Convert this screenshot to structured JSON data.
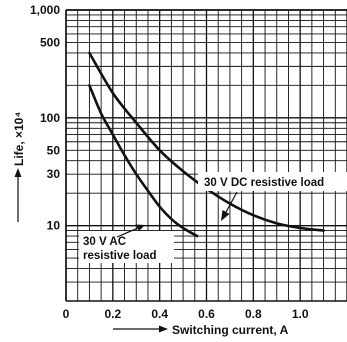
{
  "chart_data": {
    "type": "line",
    "xlabel": "Switching current, A",
    "ylabel": "Life, ×10⁴",
    "xscale": "linear",
    "yscale": "log",
    "xlim": [
      0,
      1.2
    ],
    "ylim": [
      2,
      1000
    ],
    "x_ticks": [
      {
        "value": 0,
        "label": "0"
      },
      {
        "value": 0.2,
        "label": "0.2"
      },
      {
        "value": 0.4,
        "label": "0.4"
      },
      {
        "value": 0.6,
        "label": "0.6"
      },
      {
        "value": 0.8,
        "label": "0.8"
      },
      {
        "value": 1.0,
        "label": "1.0"
      }
    ],
    "y_ticks": [
      {
        "value": 10,
        "label": "10"
      },
      {
        "value": 30,
        "label": "30"
      },
      {
        "value": 50,
        "label": "50"
      },
      {
        "value": 100,
        "label": "100"
      },
      {
        "value": 500,
        "label": "500"
      },
      {
        "value": 1000,
        "label": "1,000"
      }
    ],
    "grid": true,
    "series": [
      {
        "name": "30 V DC resistive load",
        "color": "#111111",
        "points": [
          {
            "x": 0.1,
            "y": 400
          },
          {
            "x": 0.2,
            "y": 170
          },
          {
            "x": 0.3,
            "y": 90
          },
          {
            "x": 0.4,
            "y": 50
          },
          {
            "x": 0.5,
            "y": 32
          },
          {
            "x": 0.6,
            "y": 22
          },
          {
            "x": 0.7,
            "y": 16
          },
          {
            "x": 0.8,
            "y": 12.5
          },
          {
            "x": 0.9,
            "y": 10.5
          },
          {
            "x": 1.0,
            "y": 9.5
          },
          {
            "x": 1.1,
            "y": 9
          }
        ]
      },
      {
        "name": "30 V AC resistive load",
        "color": "#111111",
        "points": [
          {
            "x": 0.1,
            "y": 200
          },
          {
            "x": 0.15,
            "y": 110
          },
          {
            "x": 0.2,
            "y": 70
          },
          {
            "x": 0.25,
            "y": 45
          },
          {
            "x": 0.3,
            "y": 30
          },
          {
            "x": 0.35,
            "y": 21
          },
          {
            "x": 0.4,
            "y": 15
          },
          {
            "x": 0.45,
            "y": 11.5
          },
          {
            "x": 0.5,
            "y": 9.5
          },
          {
            "x": 0.56,
            "y": 8
          }
        ]
      }
    ],
    "annotations": [
      {
        "text_lines": [
          "30 V DC resistive load"
        ],
        "series": 0
      },
      {
        "text_lines": [
          "30 V AC",
          "resistive load"
        ],
        "series": 1
      }
    ]
  }
}
